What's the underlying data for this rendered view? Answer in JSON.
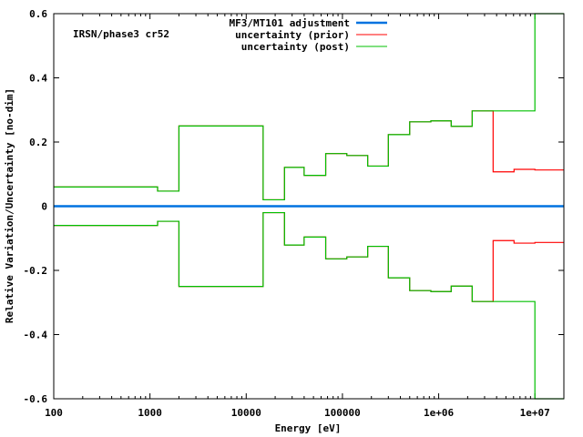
{
  "chart_data": {
    "type": "line",
    "title": "",
    "annotation": "IRSN/phase3 cr52",
    "xlabel": "Energy [eV]",
    "ylabel": "Relative Variation/Uncertainty [no-dim]",
    "xscale": "log",
    "xlim": [
      100,
      20000000
    ],
    "ylim": [
      -0.6,
      0.6
    ],
    "xticks": [
      100,
      1000,
      10000,
      100000,
      1000000,
      10000000
    ],
    "xtick_labels": [
      "100",
      "1000",
      "10000",
      "100000",
      "1e+06",
      "1e+07"
    ],
    "yticks": [
      0.6,
      0.4,
      0.2,
      0,
      -0.2,
      -0.4,
      -0.6
    ],
    "ytick_labels": [
      "0.6",
      "0.4",
      "0.2",
      "0",
      "-0.2",
      "-0.4",
      "-0.6"
    ],
    "grid": false,
    "legend_position": "top-right",
    "bin_edges": [
      100,
      1200,
      2000,
      15000,
      25000,
      40000,
      67000,
      111000,
      183000,
      300000,
      500000,
      830000,
      1350000,
      2230000,
      3680000,
      6070000,
      10000000,
      20000000
    ],
    "series": [
      {
        "name": "MF3/MT101 adjustment",
        "color": "#0072e0",
        "style": "step",
        "values": [
          0,
          0,
          0,
          0,
          0,
          0,
          0,
          0,
          0,
          0,
          0,
          0,
          0,
          0,
          0,
          0,
          0
        ]
      },
      {
        "name": "uncertainty (prior)",
        "color": "#ff0000",
        "style": "step-symmetric",
        "values": [
          0.06,
          0.047,
          0.25,
          0.02,
          0.121,
          0.096,
          0.164,
          0.158,
          0.125,
          0.223,
          0.263,
          0.266,
          0.249,
          0.297,
          0.107,
          0.115,
          0.113
        ]
      },
      {
        "name": "uncertainty (post)",
        "color": "#00c000",
        "style": "step-symmetric",
        "values": [
          0.06,
          0.047,
          0.25,
          0.02,
          0.121,
          0.096,
          0.164,
          0.158,
          0.125,
          0.223,
          0.263,
          0.266,
          0.249,
          0.297,
          0.297,
          0.297,
          0.6
        ]
      }
    ]
  }
}
